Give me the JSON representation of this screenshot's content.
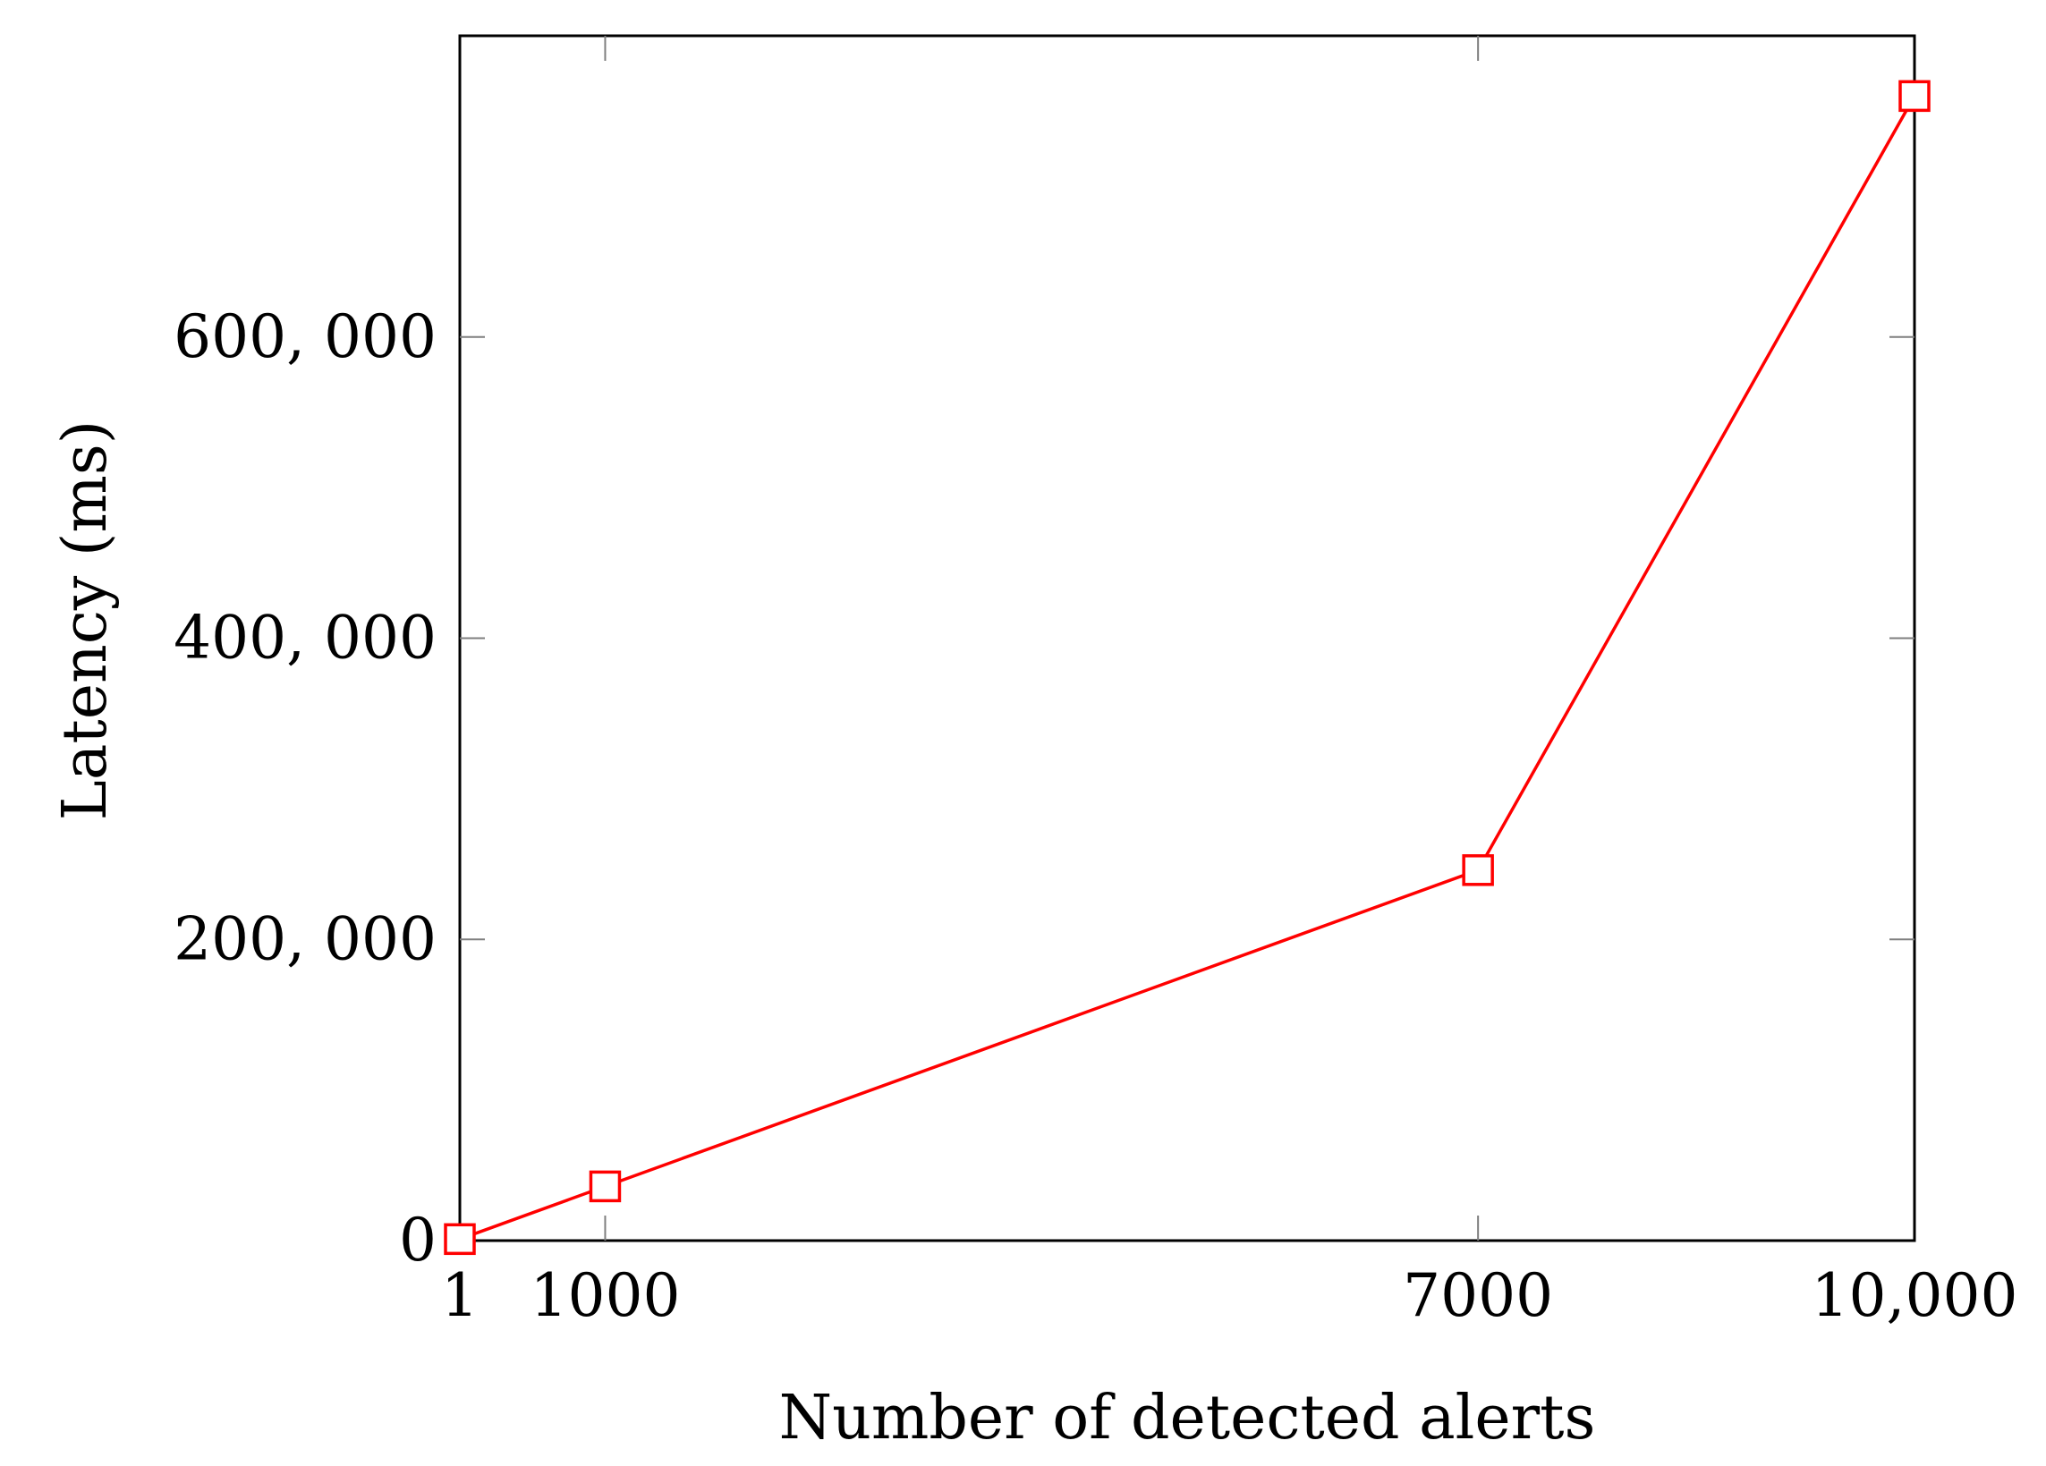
{
  "chart_data": {
    "type": "line",
    "title": "",
    "xlabel": "Number of detected alerts",
    "ylabel": "Latency (ms)",
    "xlim": [
      1,
      10000
    ],
    "ylim": [
      0,
      800000
    ],
    "x_ticks": [
      {
        "value": 1,
        "label": "1"
      },
      {
        "value": 1000,
        "label": "1000"
      },
      {
        "value": 7000,
        "label": "7000"
      },
      {
        "value": 10000,
        "label": "10,000"
      }
    ],
    "y_ticks": [
      {
        "value": 0,
        "label": "0"
      },
      {
        "value": 200000,
        "label": "200, 000"
      },
      {
        "value": 400000,
        "label": "400, 000"
      },
      {
        "value": 600000,
        "label": "600, 000"
      }
    ],
    "grid": false,
    "legend": "none",
    "series": [
      {
        "color": "#ff0000",
        "marker": "square",
        "x": [
          1,
          1000,
          7000,
          10000
        ],
        "y": [
          1000,
          36000,
          246000,
          760000
        ]
      }
    ]
  }
}
